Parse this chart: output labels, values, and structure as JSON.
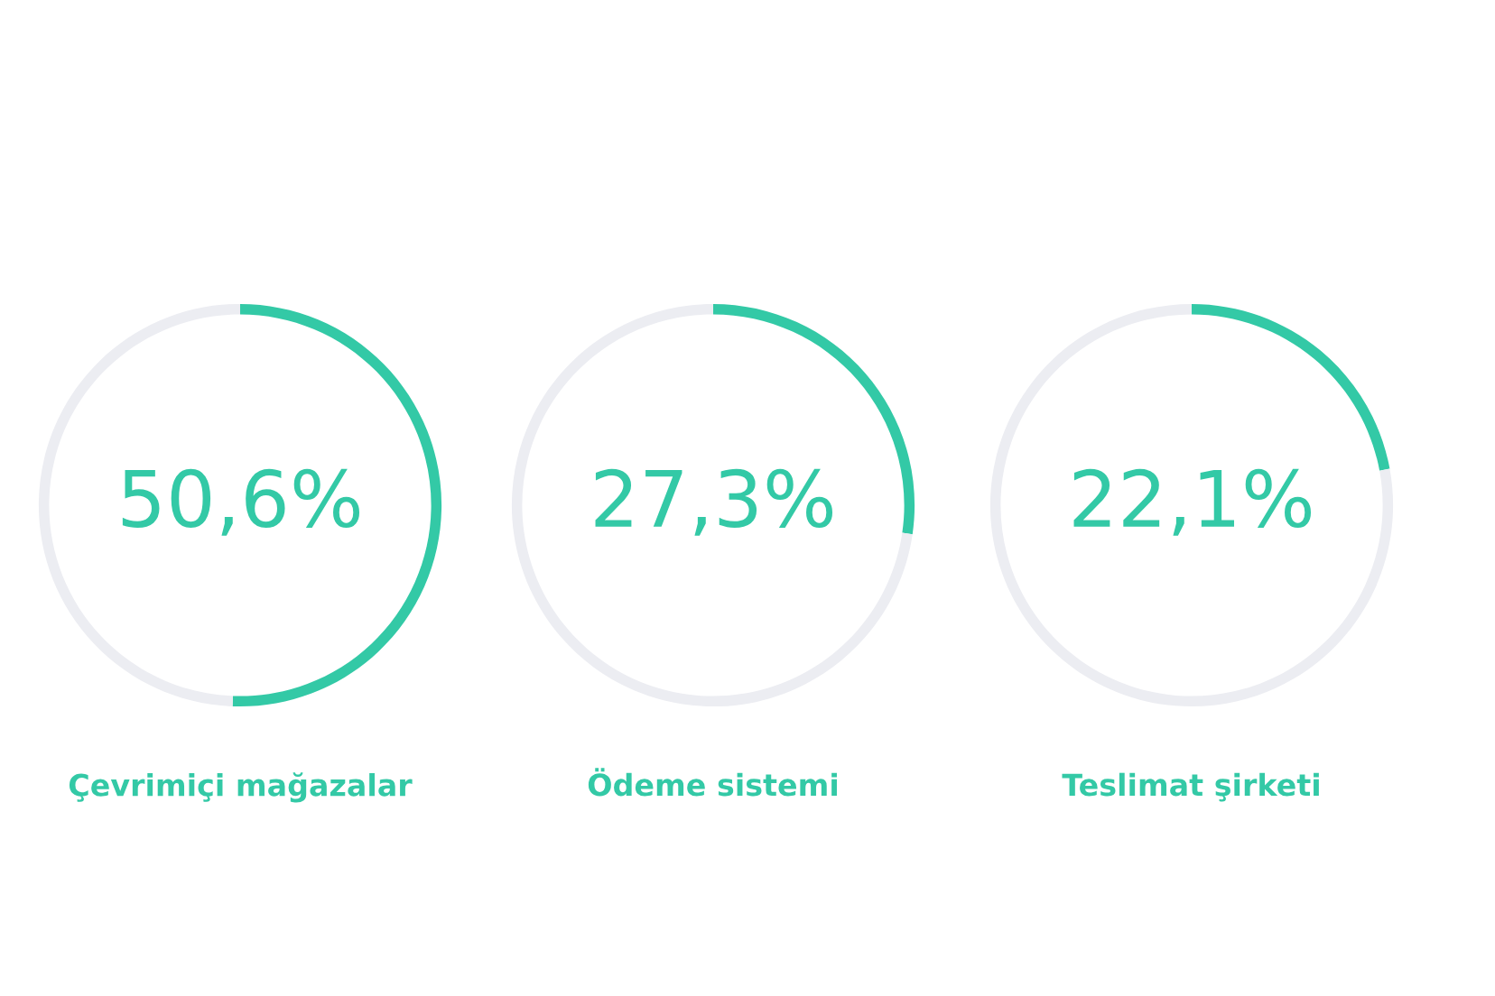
{
  "chart_data": [
    {
      "type": "donut",
      "title": "Çevrimiçi mağazalar",
      "categories": [
        null,
        null
      ],
      "values": [
        50.6,
        49.4
      ],
      "colors": [
        "#33c9a6",
        "#ecedf2"
      ],
      "value_labels": [
        "50,6%",
        null
      ]
    },
    {
      "type": "donut",
      "title": "Ödeme sistemi",
      "categories": [
        null,
        null
      ],
      "values": [
        27.3,
        72.7
      ],
      "colors": [
        "#33c9a6",
        "#ecedf2"
      ],
      "value_labels": [
        "27,3%",
        null
      ]
    },
    {
      "type": "donut",
      "title": "Teslimat şirketi",
      "categories": [
        null,
        null
      ],
      "values": [
        22.1,
        77.9
      ],
      "colors": [
        "#33c9a6",
        "#ecedf2"
      ],
      "value_labels": [
        "22,1%",
        null
      ]
    }
  ]
}
